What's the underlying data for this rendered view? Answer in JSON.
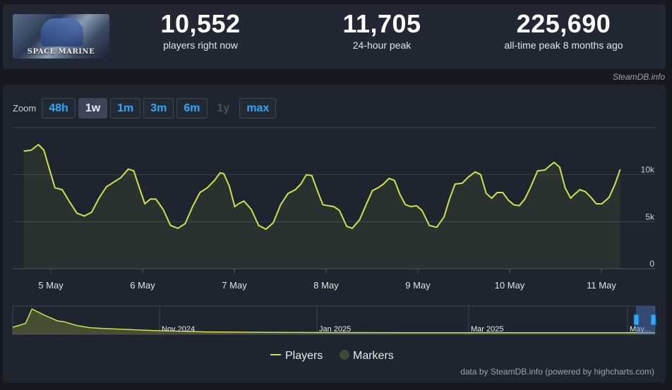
{
  "game": {
    "logo_text": "SPACE MARINE"
  },
  "stats": [
    {
      "value": "10,552",
      "label": "players right now"
    },
    {
      "value": "11,705",
      "label": "24-hour peak"
    },
    {
      "value": "225,690",
      "label": "all-time peak 8 months ago"
    }
  ],
  "credit_top": "SteamDB.info",
  "zoom": {
    "label": "Zoom",
    "buttons": [
      "48h",
      "1w",
      "1m",
      "3m",
      "6m",
      "1y",
      "max"
    ],
    "active": "1w",
    "disabled": [
      "1y"
    ]
  },
  "legend": {
    "players": "Players",
    "markers": "Markers"
  },
  "credit_bottom": "data by SteamDB.info (powered by highcharts.com)",
  "colors": {
    "line": "#cbe44a",
    "grid": "#3a4250",
    "marker": "#3e4a36",
    "accent": "#2fa8ff"
  },
  "navigator": {
    "labels": [
      "Nov 2024",
      "Jan 2025",
      "Mar 2025",
      "May..."
    ]
  },
  "chart_data": {
    "type": "line",
    "title": "",
    "xlabel": "",
    "ylabel": "",
    "x_ticks": [
      "5 May",
      "6 May",
      "7 May",
      "8 May",
      "9 May",
      "10 May",
      "11 May"
    ],
    "y_ticks": [
      "0",
      "5k",
      "10k"
    ],
    "ylim": [
      0,
      15000
    ],
    "grid": true,
    "legend_position": "bottom",
    "series": [
      {
        "name": "Players",
        "points": [
          [
            -0.28,
            12500
          ],
          [
            -0.2,
            12600
          ],
          [
            -0.12,
            13200
          ],
          [
            -0.06,
            12600
          ],
          [
            0.0,
            10600
          ],
          [
            0.06,
            8600
          ],
          [
            0.14,
            8400
          ],
          [
            0.22,
            7100
          ],
          [
            0.3,
            5900
          ],
          [
            0.38,
            5600
          ],
          [
            0.46,
            6000
          ],
          [
            0.54,
            7500
          ],
          [
            0.62,
            8700
          ],
          [
            0.7,
            9200
          ],
          [
            0.78,
            9700
          ],
          [
            0.86,
            10600
          ],
          [
            0.92,
            10400
          ],
          [
            0.98,
            8600
          ],
          [
            1.04,
            6900
          ],
          [
            1.1,
            7400
          ],
          [
            1.16,
            7400
          ],
          [
            1.24,
            6300
          ],
          [
            1.32,
            4600
          ],
          [
            1.4,
            4300
          ],
          [
            1.48,
            4800
          ],
          [
            1.56,
            6600
          ],
          [
            1.64,
            8100
          ],
          [
            1.72,
            8600
          ],
          [
            1.8,
            9400
          ],
          [
            1.86,
            10200
          ],
          [
            1.9,
            10100
          ],
          [
            1.96,
            8800
          ],
          [
            2.02,
            6600
          ],
          [
            2.06,
            6900
          ],
          [
            2.12,
            7200
          ],
          [
            2.2,
            6300
          ],
          [
            2.28,
            4600
          ],
          [
            2.36,
            4200
          ],
          [
            2.44,
            4900
          ],
          [
            2.52,
            6800
          ],
          [
            2.6,
            8000
          ],
          [
            2.68,
            8400
          ],
          [
            2.74,
            9000
          ],
          [
            2.8,
            10000
          ],
          [
            2.86,
            9900
          ],
          [
            2.92,
            8300
          ],
          [
            2.98,
            6800
          ],
          [
            3.04,
            6700
          ],
          [
            3.1,
            6600
          ],
          [
            3.16,
            6200
          ],
          [
            3.24,
            4500
          ],
          [
            3.3,
            4300
          ],
          [
            3.38,
            5200
          ],
          [
            3.46,
            7000
          ],
          [
            3.52,
            8300
          ],
          [
            3.58,
            8600
          ],
          [
            3.64,
            9000
          ],
          [
            3.7,
            9600
          ],
          [
            3.76,
            9400
          ],
          [
            3.82,
            7900
          ],
          [
            3.88,
            6800
          ],
          [
            3.94,
            6600
          ],
          [
            4.0,
            6700
          ],
          [
            4.06,
            6200
          ],
          [
            4.14,
            4600
          ],
          [
            4.22,
            4400
          ],
          [
            4.3,
            5500
          ],
          [
            4.36,
            7400
          ],
          [
            4.42,
            9000
          ],
          [
            4.5,
            9100
          ],
          [
            4.56,
            9700
          ],
          [
            4.64,
            10300
          ],
          [
            4.7,
            10000
          ],
          [
            4.76,
            8000
          ],
          [
            4.82,
            7500
          ],
          [
            4.88,
            8100
          ],
          [
            4.94,
            8100
          ],
          [
            5.0,
            7300
          ],
          [
            5.06,
            6800
          ],
          [
            5.12,
            6700
          ],
          [
            5.18,
            7400
          ],
          [
            5.24,
            8600
          ],
          [
            5.32,
            10400
          ],
          [
            5.4,
            10500
          ],
          [
            5.46,
            11000
          ],
          [
            5.5,
            11300
          ],
          [
            5.56,
            10800
          ],
          [
            5.62,
            8600
          ],
          [
            5.68,
            7500
          ],
          [
            5.72,
            7900
          ],
          [
            5.78,
            8400
          ],
          [
            5.84,
            8200
          ],
          [
            5.9,
            7600
          ],
          [
            5.96,
            6900
          ],
          [
            6.02,
            6900
          ],
          [
            6.1,
            7600
          ],
          [
            6.16,
            8900
          ],
          [
            6.22,
            10552
          ]
        ]
      }
    ],
    "navigator_series": [
      [
        0.0,
        1500
      ],
      [
        0.02,
        2400
      ],
      [
        0.03,
        5800
      ],
      [
        0.05,
        4300
      ],
      [
        0.07,
        3000
      ],
      [
        0.08,
        2800
      ],
      [
        0.1,
        1900
      ],
      [
        0.12,
        1400
      ],
      [
        0.14,
        1200
      ],
      [
        0.18,
        950
      ],
      [
        0.22,
        720
      ],
      [
        0.27,
        520
      ],
      [
        0.3,
        400
      ],
      [
        0.4,
        300
      ],
      [
        0.5,
        240
      ],
      [
        0.6,
        220
      ],
      [
        0.7,
        205
      ],
      [
        0.8,
        200
      ],
      [
        0.9,
        205
      ],
      [
        1.0,
        220
      ]
    ]
  }
}
